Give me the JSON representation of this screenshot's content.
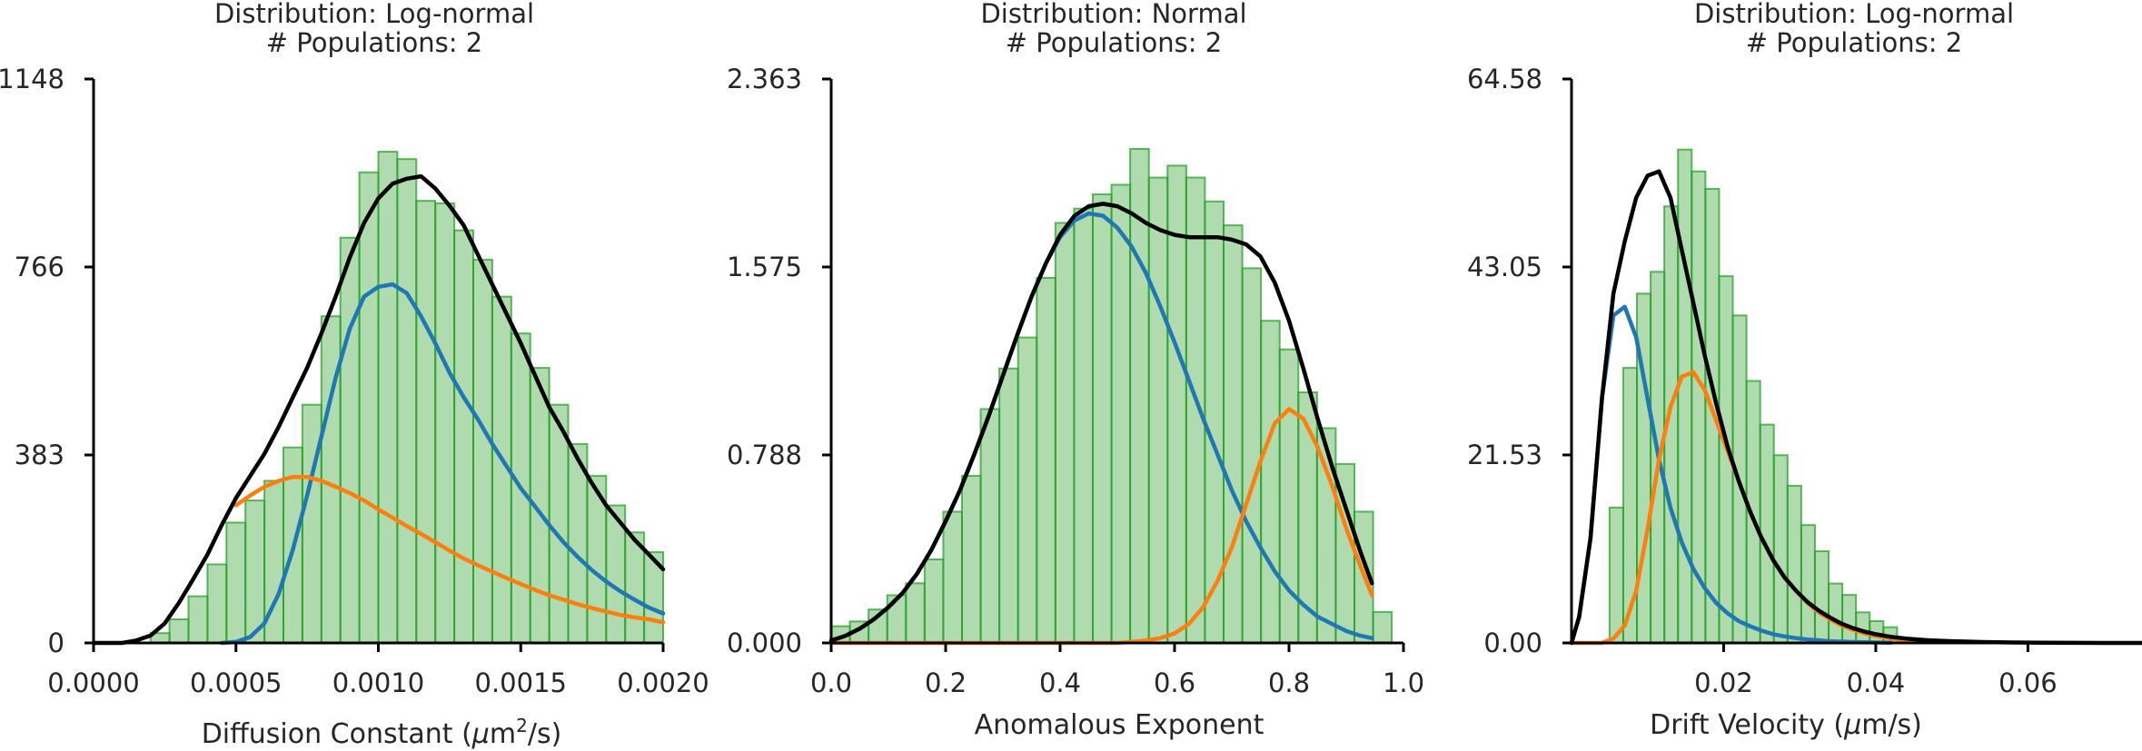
{
  "chart_data": [
    {
      "type": "bar",
      "title_lines": [
        "Distribution: Log-normal",
        "# Populations: 2"
      ],
      "xlabel": "Diffusion Constant (μm²/s)",
      "xlabel_parts": {
        "pre": "Diffusion Constant (",
        "mu": "μ",
        "unit": "m",
        "sup": "2",
        "post": "/s)"
      },
      "ylabel": "",
      "xlim": [
        0,
        0.002
      ],
      "ylim": [
        0,
        1148
      ],
      "xticks": [
        "0.0000",
        "0.0005",
        "0.0010",
        "0.0015",
        "0.0020"
      ],
      "yticks": [
        "0",
        "383",
        "766",
        "1148"
      ],
      "hist_color": "#2ca02c",
      "histogram": {
        "bin_width": 6.667e-05,
        "bin_starts": [
          0.0,
          6.667e-05,
          0.00013333,
          0.0002,
          0.00026667,
          0.00033333,
          0.0004,
          0.00046667,
          0.00053333,
          0.0006,
          0.00066667,
          0.00073333,
          0.0008,
          0.00086667,
          0.00093333,
          0.001,
          0.00106667,
          0.00113333,
          0.0012,
          0.00126667,
          0.00133333,
          0.0014,
          0.00146667,
          0.00153333,
          0.0016,
          0.00166667,
          0.00173333,
          0.0018,
          0.00186667,
          0.00193333
        ],
        "counts": [
          0,
          0,
          0,
          20,
          48,
          95,
          160,
          245,
          290,
          330,
          398,
          485,
          665,
          825,
          958,
          1000,
          985,
          900,
          895,
          840,
          780,
          705,
          630,
          560,
          485,
          405,
          340,
          280,
          225,
          185
        ]
      },
      "series": [
        {
          "color": "#000000",
          "x": [
            0.0,
            0.0001,
            0.00015,
            0.0002,
            0.00025,
            0.0003,
            0.00035,
            0.0004,
            0.00045,
            0.0005,
            0.00055,
            0.0006,
            0.00065,
            0.0007,
            0.00075,
            0.0008,
            0.00085,
            0.0009,
            0.00095,
            0.001,
            0.00105,
            0.0011,
            0.00115,
            0.0012,
            0.00125,
            0.0013,
            0.00135,
            0.0014,
            0.00145,
            0.0015,
            0.00155,
            0.0016,
            0.00165,
            0.0017,
            0.00175,
            0.0018,
            0.00185,
            0.0019,
            0.00195,
            0.002
          ],
          "y": [
            0,
            0,
            5,
            15,
            40,
            82,
            130,
            180,
            240,
            295,
            340,
            385,
            440,
            500,
            560,
            630,
            705,
            785,
            855,
            905,
            935,
            945,
            950,
            925,
            890,
            850,
            790,
            730,
            670,
            610,
            545,
            480,
            430,
            375,
            325,
            280,
            245,
            210,
            180,
            150
          ]
        },
        {
          "color": "#1f77b4",
          "x": [
            0.00045,
            0.0005,
            0.00055,
            0.0006,
            0.00065,
            0.0007,
            0.00075,
            0.0008,
            0.00085,
            0.0009,
            0.00095,
            0.001,
            0.00105,
            0.0011,
            0.00115,
            0.0012,
            0.00125,
            0.0013,
            0.00135,
            0.0014,
            0.00145,
            0.0015,
            0.00155,
            0.0016,
            0.00165,
            0.0017,
            0.00175,
            0.0018,
            0.00185,
            0.0019,
            0.00195,
            0.002
          ],
          "y": [
            0,
            2,
            12,
            40,
            100,
            190,
            300,
            420,
            540,
            640,
            705,
            725,
            730,
            712,
            665,
            610,
            550,
            500,
            455,
            405,
            360,
            315,
            278,
            240,
            205,
            175,
            148,
            125,
            105,
            88,
            72,
            60
          ]
        },
        {
          "color": "#ff7f0e",
          "x": [
            0.0005,
            0.00055,
            0.0006,
            0.00065,
            0.0007,
            0.00075,
            0.0008,
            0.00085,
            0.0009,
            0.00095,
            0.001,
            0.00105,
            0.0011,
            0.00115,
            0.0012,
            0.00125,
            0.0013,
            0.00135,
            0.0014,
            0.00145,
            0.0015,
            0.00155,
            0.0016,
            0.00165,
            0.0017,
            0.00175,
            0.0018,
            0.00185,
            0.0019,
            0.00195,
            0.002
          ],
          "y": [
            280,
            300,
            318,
            330,
            338,
            338,
            330,
            318,
            305,
            290,
            272,
            255,
            238,
            222,
            205,
            188,
            172,
            158,
            145,
            132,
            120,
            108,
            97,
            88,
            79,
            71,
            64,
            57,
            52,
            48,
            42
          ]
        }
      ]
    },
    {
      "type": "bar",
      "title_lines": [
        "Distribution: Normal",
        "# Populations: 2"
      ],
      "xlabel": "Anomalous Exponent",
      "ylabel": "",
      "xlim": [
        0,
        1
      ],
      "ylim": [
        0,
        2.363
      ],
      "xticks": [
        "0.0",
        "0.2",
        "0.4",
        "0.6",
        "0.8",
        "1.0"
      ],
      "yticks": [
        "0.000",
        "0.788",
        "1.575",
        "2.363"
      ],
      "hist_color": "#2ca02c",
      "histogram": {
        "bin_width": 0.03265,
        "bin_starts": [
          0.0,
          0.03265,
          0.06531,
          0.09796,
          0.13061,
          0.16327,
          0.19592,
          0.22857,
          0.26122,
          0.29388,
          0.32653,
          0.35918,
          0.39184,
          0.42449,
          0.45714,
          0.4898,
          0.52245,
          0.5551,
          0.58776,
          0.62041,
          0.65306,
          0.68571,
          0.71837,
          0.75102,
          0.78367,
          0.81633,
          0.84898,
          0.88163,
          0.91429,
          0.94694
        ],
        "counts": [
          0.07,
          0.09,
          0.14,
          0.2,
          0.25,
          0.35,
          0.55,
          0.7,
          0.98,
          1.15,
          1.28,
          1.53,
          1.76,
          1.82,
          1.88,
          1.92,
          2.07,
          1.95,
          2.0,
          1.95,
          1.85,
          1.75,
          1.57,
          1.35,
          1.23,
          1.05,
          0.9,
          0.75,
          0.55,
          0.13
        ]
      },
      "series": [
        {
          "color": "#000000",
          "x": [
            0.0,
            0.025,
            0.05,
            0.075,
            0.1,
            0.125,
            0.15,
            0.175,
            0.2,
            0.225,
            0.25,
            0.275,
            0.3,
            0.325,
            0.35,
            0.375,
            0.4,
            0.425,
            0.45,
            0.475,
            0.5,
            0.525,
            0.55,
            0.575,
            0.6,
            0.625,
            0.65,
            0.675,
            0.7,
            0.725,
            0.75,
            0.775,
            0.8,
            0.825,
            0.85,
            0.875,
            0.9,
            0.925,
            0.945
          ],
          "y": [
            0.01,
            0.03,
            0.06,
            0.1,
            0.15,
            0.21,
            0.29,
            0.39,
            0.51,
            0.64,
            0.79,
            0.95,
            1.12,
            1.29,
            1.45,
            1.59,
            1.71,
            1.79,
            1.83,
            1.84,
            1.83,
            1.8,
            1.76,
            1.73,
            1.71,
            1.7,
            1.7,
            1.7,
            1.69,
            1.67,
            1.62,
            1.51,
            1.35,
            1.15,
            0.94,
            0.74,
            0.56,
            0.38,
            0.25
          ]
        },
        {
          "color": "#1f77b4",
          "x": [
            0.0,
            0.025,
            0.05,
            0.075,
            0.1,
            0.125,
            0.15,
            0.175,
            0.2,
            0.225,
            0.25,
            0.275,
            0.3,
            0.325,
            0.35,
            0.375,
            0.4,
            0.425,
            0.45,
            0.475,
            0.5,
            0.525,
            0.55,
            0.575,
            0.6,
            0.625,
            0.65,
            0.675,
            0.7,
            0.725,
            0.75,
            0.775,
            0.8,
            0.825,
            0.85,
            0.875,
            0.9,
            0.925,
            0.945
          ],
          "y": [
            0.01,
            0.03,
            0.06,
            0.1,
            0.15,
            0.21,
            0.29,
            0.39,
            0.51,
            0.64,
            0.79,
            0.95,
            1.12,
            1.29,
            1.45,
            1.59,
            1.7,
            1.77,
            1.8,
            1.79,
            1.74,
            1.66,
            1.55,
            1.41,
            1.26,
            1.1,
            0.94,
            0.79,
            0.64,
            0.51,
            0.4,
            0.3,
            0.22,
            0.16,
            0.11,
            0.08,
            0.05,
            0.03,
            0.02
          ]
        },
        {
          "color": "#ff7f0e",
          "x": [
            0.0,
            0.5,
            0.525,
            0.55,
            0.575,
            0.6,
            0.625,
            0.65,
            0.675,
            0.7,
            0.725,
            0.75,
            0.775,
            0.8,
            0.825,
            0.85,
            0.875,
            0.9,
            0.925,
            0.945
          ],
          "y": [
            0.0,
            0.0,
            0.005,
            0.01,
            0.02,
            0.04,
            0.08,
            0.15,
            0.26,
            0.4,
            0.58,
            0.76,
            0.92,
            0.98,
            0.94,
            0.82,
            0.66,
            0.48,
            0.32,
            0.2
          ]
        }
      ]
    },
    {
      "type": "bar",
      "title_lines": [
        "Distribution: Log-normal",
        "# Populations: 2"
      ],
      "xlabel": "Drift Velocity (μm/s)",
      "xlabel_parts": {
        "pre": "Drift Velocity (",
        "mu": "μ",
        "unit": "m/s)",
        "sup": "",
        "post": ""
      },
      "ylabel": "",
      "xlim": [
        0,
        0.075
      ],
      "ylim": [
        0,
        64.58
      ],
      "xticks": [
        "0.02",
        "0.04",
        "0.06"
      ],
      "xtick_values": [
        0.02,
        0.04,
        0.06
      ],
      "yticks": [
        "0.00",
        "21.53",
        "43.05",
        "64.58"
      ],
      "hist_color": "#2ca02c",
      "histogram": {
        "bin_width": 0.0018,
        "bin_starts": [
          0.005,
          0.0068,
          0.0086,
          0.0104,
          0.0122,
          0.014,
          0.0158,
          0.0176,
          0.0194,
          0.0212,
          0.023,
          0.0248,
          0.0266,
          0.0284,
          0.0302,
          0.032,
          0.0338,
          0.0356,
          0.0374,
          0.0392,
          0.041
        ],
        "counts": [
          15.5,
          31.5,
          40.0,
          42.5,
          50.0,
          56.5,
          54.0,
          52.0,
          42.0,
          37.5,
          30.0,
          25.0,
          21.5,
          18.0,
          13.5,
          10.5,
          6.8,
          5.5,
          3.5,
          2.5,
          1.8
        ]
      },
      "series": [
        {
          "color": "#000000",
          "x": [
            0.0,
            0.001,
            0.0025,
            0.004,
            0.0055,
            0.007,
            0.0085,
            0.01,
            0.0115,
            0.013,
            0.0145,
            0.016,
            0.0175,
            0.019,
            0.0205,
            0.022,
            0.0235,
            0.025,
            0.0265,
            0.028,
            0.0295,
            0.031,
            0.0325,
            0.034,
            0.0355,
            0.037,
            0.0385,
            0.04,
            0.042,
            0.044,
            0.047,
            0.05,
            0.054,
            0.058,
            0.062,
            0.066,
            0.07,
            0.075
          ],
          "y": [
            0,
            3,
            12,
            28,
            40,
            46,
            51,
            53.5,
            54,
            51,
            45,
            39,
            33,
            27.5,
            22.5,
            18.5,
            15,
            12,
            9.5,
            7.5,
            6,
            4.7,
            3.7,
            2.9,
            2.2,
            1.7,
            1.3,
            1.0,
            0.7,
            0.5,
            0.3,
            0.2,
            0.1,
            0.05,
            0.02,
            0.01,
            0.0,
            0.0
          ]
        },
        {
          "color": "#1f77b4",
          "x": [
            0.0,
            0.001,
            0.0025,
            0.004,
            0.0055,
            0.007,
            0.0085,
            0.01,
            0.0115,
            0.013,
            0.0145,
            0.016,
            0.0175,
            0.019,
            0.0205,
            0.022,
            0.0235,
            0.025,
            0.0265,
            0.028,
            0.0295,
            0.031,
            0.0325,
            0.034,
            0.0355,
            0.037,
            0.0385,
            0.04,
            0.042
          ],
          "y": [
            0,
            3,
            12,
            28,
            37.5,
            38.5,
            35,
            28,
            21,
            15.5,
            11.5,
            8.5,
            6.3,
            4.6,
            3.4,
            2.5,
            1.9,
            1.4,
            1.0,
            0.75,
            0.55,
            0.4,
            0.3,
            0.2,
            0.15,
            0.1,
            0.08,
            0.05,
            0.03
          ]
        },
        {
          "color": "#ff7f0e",
          "x": [
            0.0,
            0.004,
            0.0055,
            0.007,
            0.0085,
            0.01,
            0.0115,
            0.013,
            0.0145,
            0.016,
            0.0175,
            0.019,
            0.0205,
            0.022,
            0.0235,
            0.025,
            0.0265,
            0.028,
            0.0295,
            0.031,
            0.0325,
            0.034,
            0.0355,
            0.037,
            0.0385,
            0.04,
            0.042,
            0.044,
            0.047
          ],
          "y": [
            0,
            0,
            0.5,
            2,
            6,
            13,
            21,
            27,
            30.5,
            31,
            29,
            25.5,
            22,
            18.5,
            15,
            12,
            9.5,
            7.5,
            6,
            4.6,
            3.5,
            2.7,
            2.0,
            1.5,
            1.1,
            0.8,
            0.5,
            0.3,
            0.1
          ]
        }
      ]
    }
  ]
}
